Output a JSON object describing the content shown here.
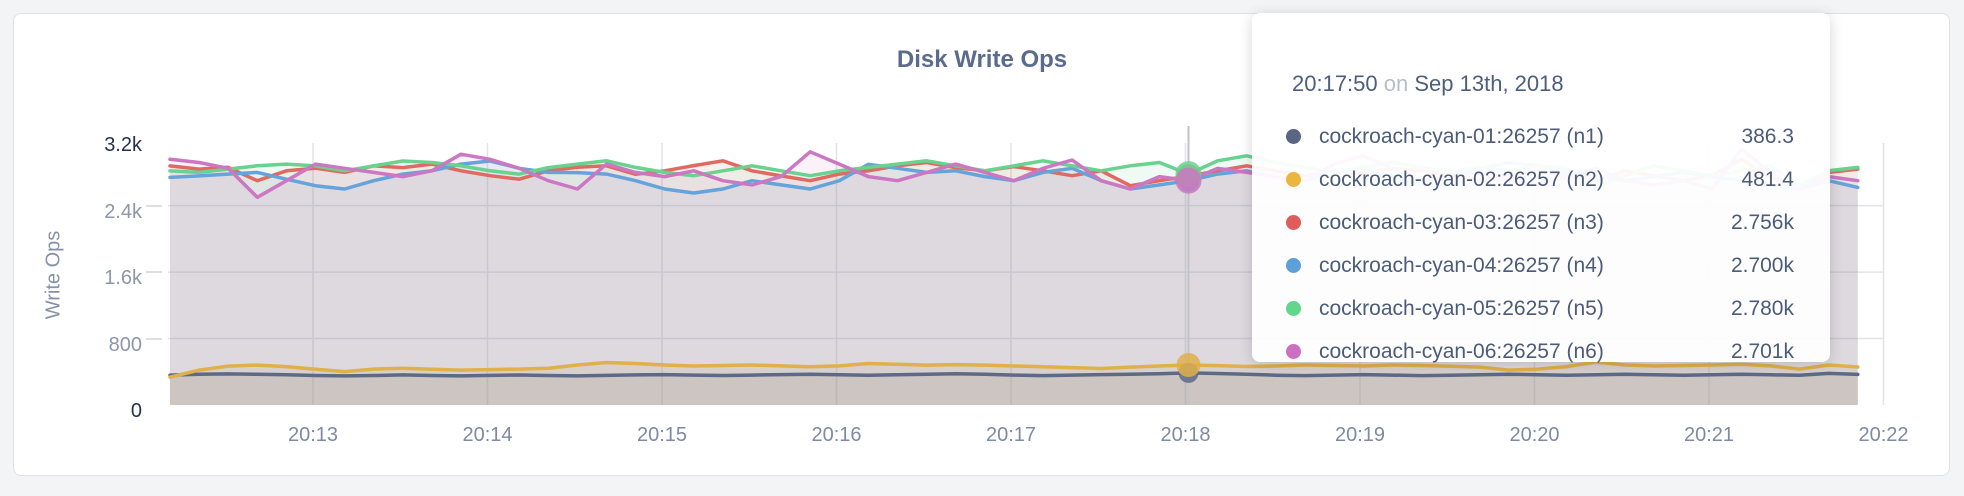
{
  "chart_data": {
    "type": "area",
    "title": "Disk Write Ops",
    "ylabel": "Write Ops",
    "ylim": [
      0,
      3200
    ],
    "grid": true,
    "legend_position": "tooltip-overlay",
    "y_ticks": [
      {
        "value": 0,
        "label": "0",
        "grid": false,
        "extreme": true
      },
      {
        "value": 800,
        "label": "800",
        "grid": true,
        "extreme": false
      },
      {
        "value": 1600,
        "label": "1.6k",
        "grid": true,
        "extreme": false
      },
      {
        "value": 2400,
        "label": "2.4k",
        "grid": true,
        "extreme": false
      },
      {
        "value": 3200,
        "label": "3.2k",
        "grid": false,
        "extreme": true
      }
    ],
    "x_ticks": [
      "20:13",
      "20:14",
      "20:15",
      "20:16",
      "20:17",
      "20:18",
      "20:19",
      "20:20",
      "20:21",
      "20:22"
    ],
    "x_start_time": "20:12:10",
    "x_interval_seconds": 10,
    "series": [
      {
        "name": "cockroach-cyan-01:26257 (n1)",
        "color": "#5c6a87",
        "fill_opacity": 0.14,
        "dot_radius": 10,
        "values": [
          360,
          370,
          375,
          370,
          365,
          355,
          350,
          355,
          362,
          355,
          350,
          356,
          361,
          355,
          350,
          356,
          362,
          366,
          360,
          355,
          360,
          366,
          371,
          365,
          359,
          364,
          370,
          376,
          370,
          360,
          354,
          360,
          366,
          371,
          376,
          386.3,
          379,
          369,
          359,
          354,
          360,
          366,
          360,
          354,
          359,
          365,
          371,
          364,
          358,
          364,
          370,
          364,
          358,
          364,
          370,
          364,
          358,
          381,
          368
        ]
      },
      {
        "name": "cockroach-cyan-02:26257 (n2)",
        "color": "#e0b04a",
        "fill_opacity": 0.16,
        "dot_radius": 12,
        "values": [
          335,
          420,
          468,
          480,
          462,
          430,
          402,
          432,
          442,
          430,
          420,
          426,
          432,
          442,
          482,
          512,
          500,
          481,
          470,
          476,
          481,
          471,
          461,
          471,
          500,
          490,
          480,
          486,
          480,
          470,
          460,
          450,
          440,
          456,
          470,
          481.4,
          474,
          464,
          470,
          481,
          475,
          470,
          481,
          476,
          466,
          456,
          420,
          432,
          462,
          518,
          481,
          470,
          476,
          481,
          491,
          471,
          432,
          481,
          458
        ]
      },
      {
        "name": "cockroach-cyan-03:26257 (n3)",
        "color": "#e06a62",
        "fill_opacity": 0.1,
        "dot_radius": 12,
        "values": [
          2878,
          2840,
          2862,
          2700,
          2820,
          2851,
          2800,
          2880,
          2858,
          2900,
          2820,
          2760,
          2718,
          2820,
          2862,
          2880,
          2778,
          2820,
          2882,
          2940,
          2820,
          2758,
          2700,
          2780,
          2820,
          2880,
          2920,
          2858,
          2820,
          2870,
          2820,
          2760,
          2820,
          2640,
          2700,
          2756,
          2820,
          2880,
          2820,
          2758,
          2820,
          2790,
          2850,
          2820,
          2760,
          2700,
          2760,
          2820,
          2758,
          2700,
          2820,
          2760,
          2700,
          2760,
          2958,
          2740,
          2640,
          2800,
          2840
        ]
      },
      {
        "name": "cockroach-cyan-04:26257 (n4)",
        "color": "#66a3da",
        "fill_opacity": 0.1,
        "dot_radius": 11,
        "values": [
          2740,
          2758,
          2780,
          2800,
          2718,
          2640,
          2600,
          2700,
          2780,
          2820,
          2900,
          2938,
          2850,
          2800,
          2798,
          2780,
          2700,
          2600,
          2552,
          2600,
          2700,
          2650,
          2600,
          2700,
          2898,
          2850,
          2800,
          2820,
          2750,
          2700,
          2800,
          2850,
          2700,
          2600,
          2650,
          2700,
          2780,
          2820,
          2750,
          2700,
          2800,
          2850,
          2750,
          2650,
          2750,
          2850,
          2918,
          2880,
          2800,
          2750,
          2700,
          2750,
          2800,
          2750,
          2700,
          2650,
          2600,
          2700,
          2620
        ]
      },
      {
        "name": "cockroach-cyan-05:26257 (n5)",
        "color": "#69d28f",
        "fill_opacity": 0.1,
        "dot_radius": 13,
        "values": [
          2818,
          2800,
          2840,
          2880,
          2900,
          2878,
          2820,
          2880,
          2938,
          2920,
          2880,
          2820,
          2780,
          2858,
          2900,
          2940,
          2860,
          2800,
          2760,
          2820,
          2880,
          2820,
          2760,
          2820,
          2860,
          2900,
          2940,
          2880,
          2820,
          2880,
          2940,
          2880,
          2820,
          2880,
          2920,
          2780,
          2940,
          3000,
          2920,
          2860,
          2800,
          2860,
          2920,
          2860,
          2800,
          2860,
          2820,
          2880,
          2840,
          2620,
          2760,
          2880,
          2820,
          2760,
          2820,
          2880,
          2640,
          2820,
          2860
        ]
      },
      {
        "name": "cockroach-cyan-06:26257 (n6)",
        "color": "#cb77c2",
        "fill_opacity": 0.1,
        "dot_radius": 13,
        "values": [
          2958,
          2920,
          2850,
          2500,
          2700,
          2900,
          2850,
          2800,
          2750,
          2820,
          3020,
          2958,
          2850,
          2700,
          2600,
          2900,
          2800,
          2750,
          2820,
          2700,
          2650,
          2750,
          3048,
          2900,
          2750,
          2700,
          2800,
          2900,
          2800,
          2700,
          2850,
          2950,
          2700,
          2600,
          2750,
          2701,
          2850,
          2800,
          2750,
          2700,
          2900,
          3000,
          2850,
          2700,
          2750,
          2800,
          2700,
          2650,
          2750,
          2850,
          2700,
          2650,
          2700,
          2600,
          3078,
          2800,
          2600,
          2750,
          2700
        ]
      }
    ]
  },
  "tooltip": {
    "time": "20:17:50",
    "conjunction": "on",
    "date": "Sep 13th, 2018",
    "hover_index": 35,
    "dot_draw_order": [
      3,
      2,
      4,
      5,
      0,
      1
    ],
    "rows": [
      {
        "label": "cockroach-cyan-01:26257 (n1)",
        "value": "386.3",
        "color": "#5a6483"
      },
      {
        "label": "cockroach-cyan-02:26257 (n2)",
        "value": "481.4",
        "color": "#eab63e"
      },
      {
        "label": "cockroach-cyan-03:26257 (n3)",
        "value": "2.756k",
        "color": "#e05c5c"
      },
      {
        "label": "cockroach-cyan-04:26257 (n4)",
        "value": "2.700k",
        "color": "#5ba0d9"
      },
      {
        "label": "cockroach-cyan-05:26257 (n5)",
        "value": "2.780k",
        "color": "#62d68c"
      },
      {
        "label": "cockroach-cyan-06:26257 (n6)",
        "value": "2.701k",
        "color": "#cb70c0"
      }
    ]
  },
  "colors": {
    "page_bg": "#f3f4f6",
    "card_bg": "#ffffff",
    "card_border": "#e0e1e5",
    "grid_line": "#e2e3e6",
    "hover_line": "#c2c3c7",
    "title_text": "#5a6b8c",
    "tick_text": "#8d97aa",
    "tick_text_extreme": "#22324e"
  }
}
